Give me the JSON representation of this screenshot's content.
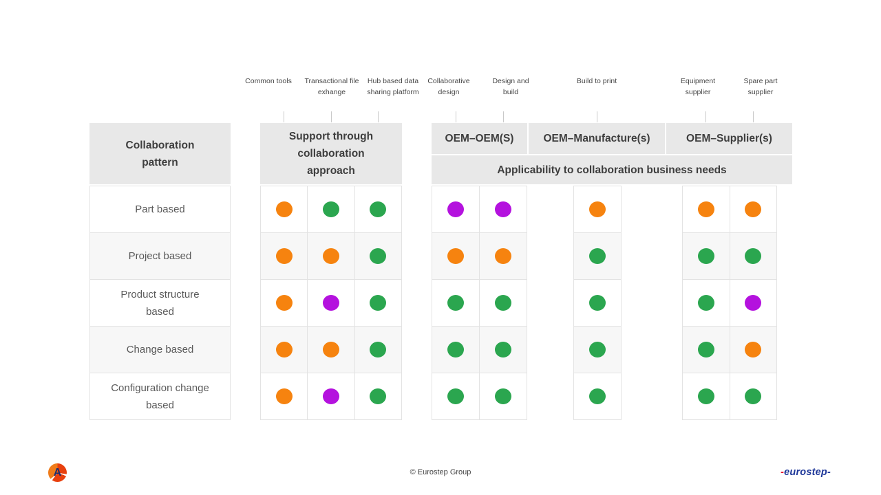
{
  "chart_data": {
    "type": "table",
    "row_header": "Collaboration pattern",
    "applicability_header": "Applicability to collaboration business needs",
    "column_groups": [
      {
        "header": "Support through collaboration approach",
        "columns": [
          "Common tools",
          "Transactional file exhange",
          "Hub based data sharing platform"
        ]
      },
      {
        "header": "OEM–OEM(S)",
        "columns": [
          "Collaborative design",
          "Design and build"
        ]
      },
      {
        "header": "OEM–Manufacture(s)",
        "columns": [
          "Build to print"
        ]
      },
      {
        "header": "OEM–Supplier(s)",
        "columns": [
          "Equipment supplier",
          "Spare part supplier"
        ]
      }
    ],
    "rows": [
      {
        "label": "Part based",
        "approach": [
          "orange",
          "green",
          "green"
        ],
        "oem_oem": [
          "purple",
          "purple"
        ],
        "oem_manufacture": [
          "orange"
        ],
        "oem_supplier": [
          "orange",
          "orange"
        ]
      },
      {
        "label": "Project based",
        "approach": [
          "orange",
          "orange",
          "green"
        ],
        "oem_oem": [
          "orange",
          "orange"
        ],
        "oem_manufacture": [
          "green"
        ],
        "oem_supplier": [
          "green",
          "green"
        ]
      },
      {
        "label": "Product structure based",
        "approach": [
          "orange",
          "purple",
          "green"
        ],
        "oem_oem": [
          "green",
          "green"
        ],
        "oem_manufacture": [
          "green"
        ],
        "oem_supplier": [
          "green",
          "purple"
        ]
      },
      {
        "label": "Change based",
        "approach": [
          "orange",
          "orange",
          "green"
        ],
        "oem_oem": [
          "green",
          "green"
        ],
        "oem_manufacture": [
          "green"
        ],
        "oem_supplier": [
          "green",
          "orange"
        ]
      },
      {
        "label": "Configuration change based",
        "approach": [
          "orange",
          "purple",
          "green"
        ],
        "oem_oem": [
          "green",
          "green"
        ],
        "oem_manufacture": [
          "green"
        ],
        "oem_supplier": [
          "green",
          "green"
        ]
      }
    ]
  },
  "colors": {
    "orange": "#F6830F",
    "green": "#2BA64F",
    "purple": "#B412DE",
    "header_bg": "#E8E8E8",
    "row_alt_bg": "#F7F7F7",
    "grid_line": "#E3E3E3"
  },
  "footer": {
    "copyright": "© Eurostep Group",
    "brand_prefix": "-",
    "brand": "eurostep",
    "brand_suffix": "-",
    "logo_letter": "A"
  }
}
